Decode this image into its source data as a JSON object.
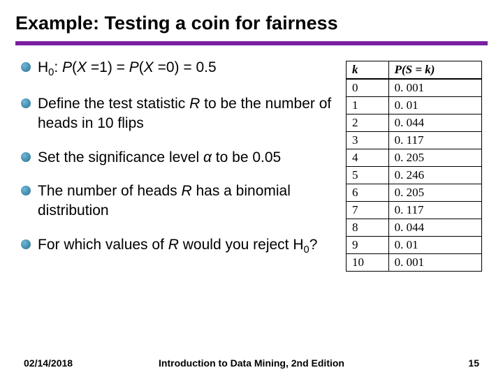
{
  "title": "Example: Testing a coin for fairness",
  "accent_color": "#7a1fa2",
  "dot_gradient_light": "#6fb8d8",
  "dot_gradient_dark": "#2a6f8f",
  "bullets": [
    "H<span class='sub'>0</span>: <span class='math-i'>P</span>(<span class='math-i'>X</span> =1) = <span class='math-i'>P</span>(<span class='math-i'>X</span> =0) = 0.5",
    "Define the test statistic <span class='math-i'>R</span> to be the number of heads in 10 flips",
    "Set the significance level <span class='math-i'>α</span> to be 0.05",
    "The number of heads <span class='math-i'>R</span> has a binomial distribution",
    "For which values of <span class='math-i'>R</span> would you reject H<span class='sub'>0</span>?"
  ],
  "table": {
    "header_k": "k",
    "header_p": "P(S = k)",
    "rows": [
      {
        "k": "0",
        "p": "0. 001"
      },
      {
        "k": "1",
        "p": "0. 01"
      },
      {
        "k": "2",
        "p": "0. 044"
      },
      {
        "k": "3",
        "p": "0. 117"
      },
      {
        "k": "4",
        "p": "0. 205"
      },
      {
        "k": "5",
        "p": "0. 246"
      },
      {
        "k": "6",
        "p": "0. 205"
      },
      {
        "k": "7",
        "p": "0. 117"
      },
      {
        "k": "8",
        "p": "0. 044"
      },
      {
        "k": "9",
        "p": "0. 01"
      },
      {
        "k": "10",
        "p": "0. 001"
      }
    ]
  },
  "footer": {
    "date": "02/14/2018",
    "center": "Introduction to Data Mining, 2nd Edition",
    "page": "15"
  }
}
